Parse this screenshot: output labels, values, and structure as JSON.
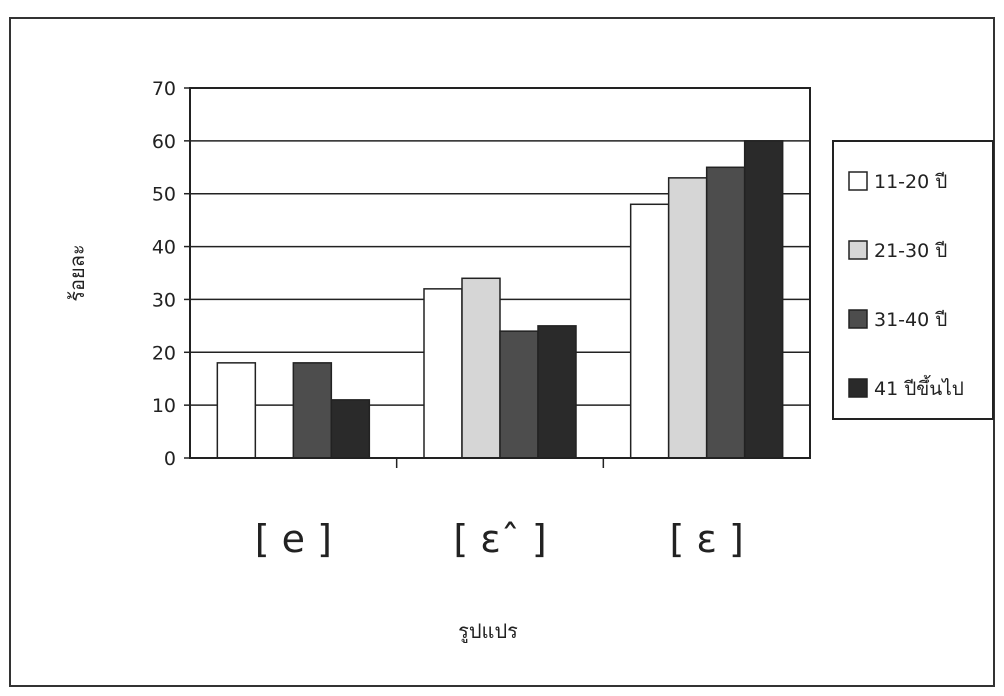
{
  "chart_data": {
    "type": "bar",
    "title": "",
    "xlabel": "รูปแปร",
    "ylabel": "ร้อยละ",
    "categories": [
      "[ e ]",
      "[ ɛˆ ]",
      "[ ɛ ]"
    ],
    "ylim": [
      0,
      70
    ],
    "yticks": [
      "0",
      "10",
      "20",
      "30",
      "40",
      "50",
      "60",
      "70"
    ],
    "grid": true,
    "legend_position": "right",
    "series": [
      {
        "name": "11-20 ปี",
        "values": [
          18,
          32,
          48
        ],
        "color": "#ffffff"
      },
      {
        "name": "21-30 ปี",
        "values": [
          0,
          34,
          53
        ],
        "color": "#d6d6d6"
      },
      {
        "name": "31-40 ปี",
        "values": [
          18,
          24,
          55
        ],
        "color": "#4d4d4d"
      },
      {
        "name": "41 ปีขึ้นไป",
        "values": [
          11,
          25,
          60
        ],
        "color": "#2a2a2a"
      }
    ]
  }
}
